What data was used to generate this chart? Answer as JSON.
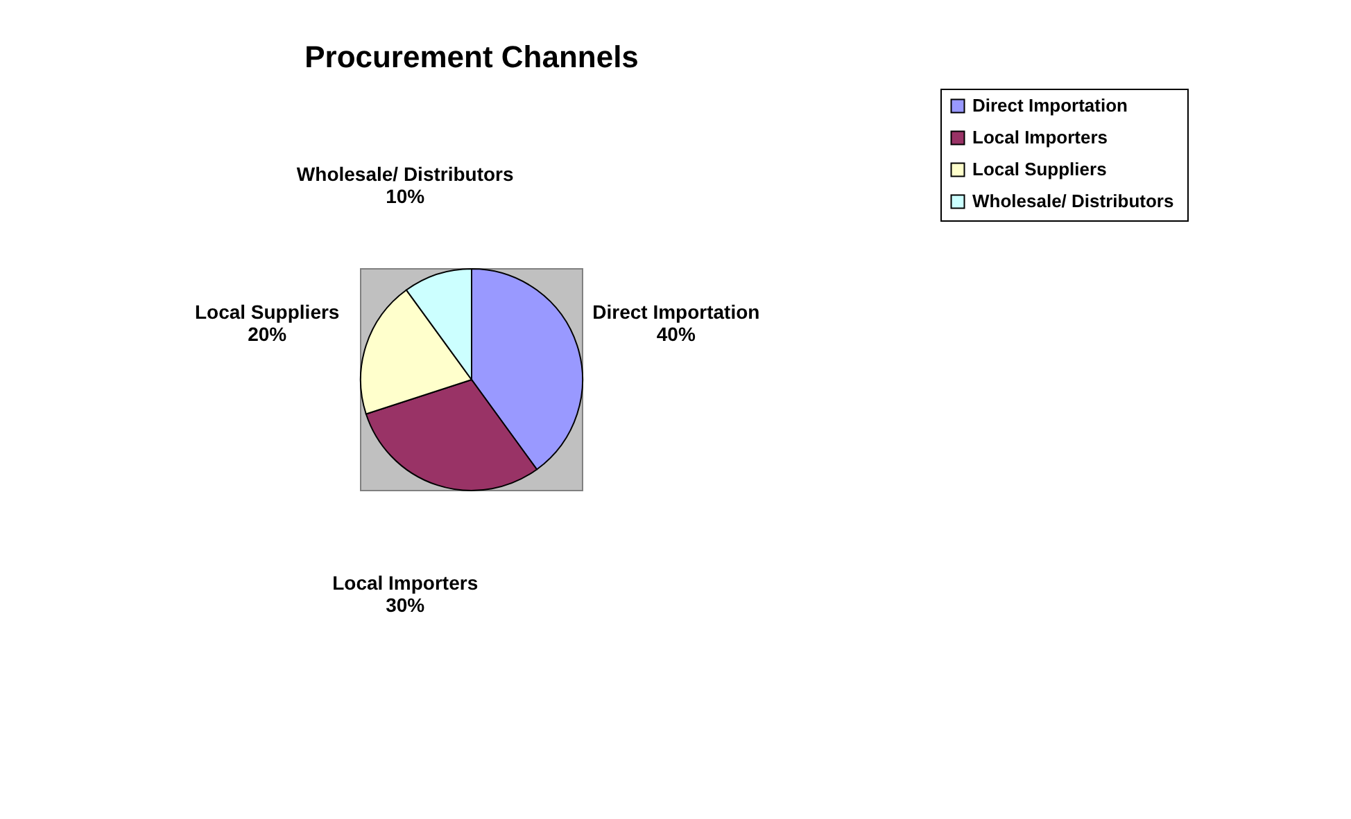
{
  "chart_data": {
    "type": "pie",
    "title": "Procurement Channels",
    "categories": [
      "Direct Importation",
      "Local Importers",
      "Local Suppliers",
      "Wholesale/  Distributors"
    ],
    "values": [
      40,
      30,
      20,
      10
    ],
    "value_labels": [
      "40%",
      "30%",
      "20%",
      "10%"
    ],
    "colors": [
      "#9999ff",
      "#993366",
      "#ffffcc",
      "#ccffff"
    ],
    "legend": "right"
  }
}
